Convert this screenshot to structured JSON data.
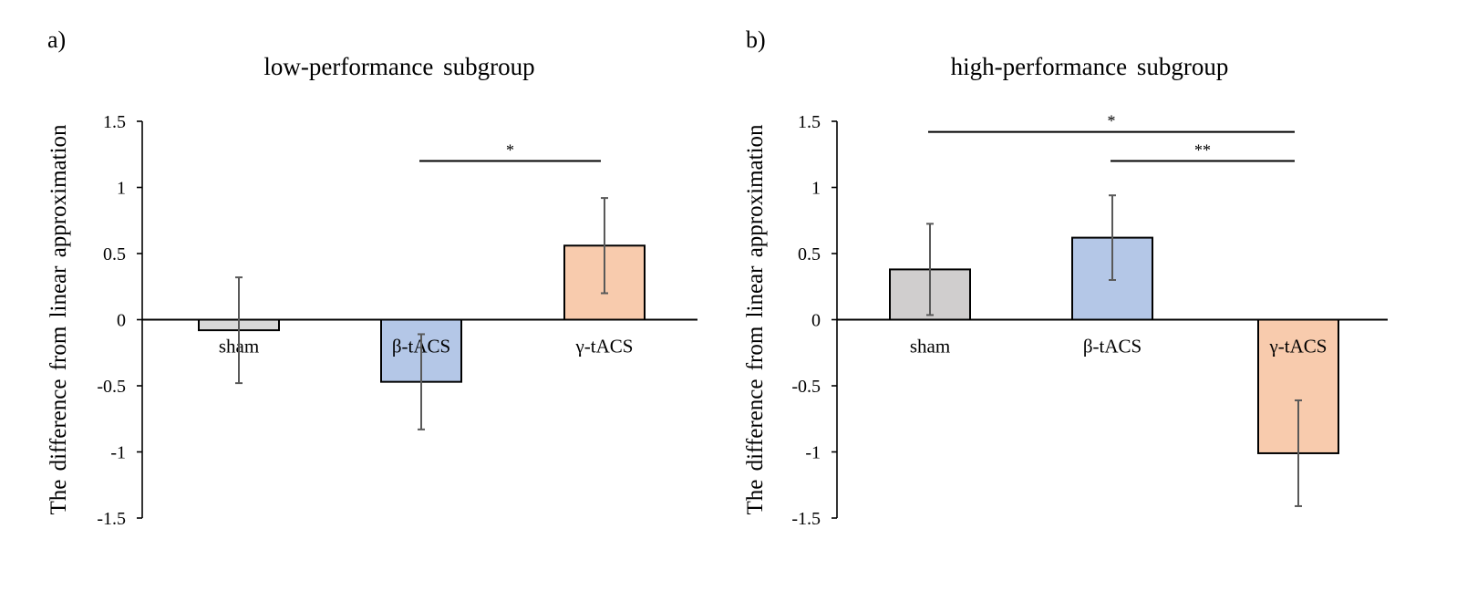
{
  "chart_data": [
    {
      "type": "bar",
      "panel_label": "a)",
      "title": "low-performance subgroup",
      "ylabel": "The difference from linear approximation",
      "xlabel": "",
      "ylim": [
        -1.5,
        1.5
      ],
      "yticks": [
        1.5,
        1,
        0.5,
        0,
        -0.5,
        -1,
        -1.5
      ],
      "ytick_labels": [
        "1.5",
        "1",
        "0.5",
        "0",
        "-0.5",
        "-1",
        "-1.5"
      ],
      "grid": false,
      "categories": [
        "sham",
        "β-tACS",
        "γ-tACS"
      ],
      "values": [
        -0.08,
        -0.47,
        0.56
      ],
      "errors": [
        0.4,
        0.36,
        0.36
      ],
      "colors": [
        "#d9d9d9",
        "#b4c7e7",
        "#f8cbad"
      ],
      "significance": [
        {
          "from": 1,
          "to": 2,
          "label": "*",
          "y": 1.2
        }
      ]
    },
    {
      "type": "bar",
      "panel_label": "b)",
      "title": "high-performance subgroup",
      "ylabel": "The difference from linear approximation",
      "xlabel": "",
      "ylim": [
        -1.5,
        1.5
      ],
      "yticks": [
        1.5,
        1,
        0.5,
        0,
        -0.5,
        -1,
        -1.5
      ],
      "ytick_labels": [
        "1.5",
        "1",
        "0.5",
        "0",
        "-0.5",
        "-1",
        "-1.5"
      ],
      "grid": false,
      "categories": [
        "sham",
        "β-tACS",
        "γ-tACS"
      ],
      "values": [
        0.38,
        0.62,
        -1.01
      ],
      "errors": [
        0.345,
        0.32,
        0.4
      ],
      "colors": [
        "#d0cece",
        "#b4c7e7",
        "#f8cbad"
      ],
      "significance": [
        {
          "from": 0,
          "to": 2,
          "label": "*",
          "y": 1.42
        },
        {
          "from": 1,
          "to": 2,
          "label": "**",
          "y": 1.2
        }
      ]
    }
  ]
}
